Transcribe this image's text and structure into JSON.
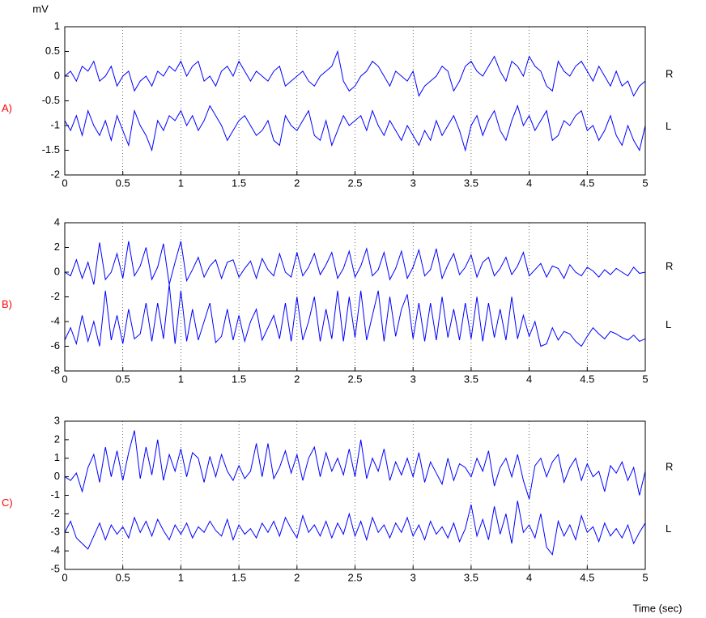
{
  "chart_data": [
    {
      "type": "line",
      "panel_label": "A)",
      "panel_color": "#ff0000",
      "ylabel": "mV",
      "x": [
        0,
        0.05,
        0.1,
        0.15,
        0.2,
        0.25,
        0.3,
        0.35,
        0.4,
        0.45,
        0.5,
        0.55,
        0.6,
        0.65,
        0.7,
        0.75,
        0.8,
        0.85,
        0.9,
        0.95,
        1,
        1.05,
        1.1,
        1.15,
        1.2,
        1.25,
        1.3,
        1.35,
        1.4,
        1.45,
        1.5,
        1.55,
        1.6,
        1.65,
        1.7,
        1.75,
        1.8,
        1.85,
        1.9,
        1.95,
        2,
        2.05,
        2.1,
        2.15,
        2.2,
        2.25,
        2.3,
        2.35,
        2.4,
        2.45,
        2.5,
        2.55,
        2.6,
        2.65,
        2.7,
        2.75,
        2.8,
        2.85,
        2.9,
        2.95,
        3,
        3.05,
        3.1,
        3.15,
        3.2,
        3.25,
        3.3,
        3.35,
        3.4,
        3.45,
        3.5,
        3.55,
        3.6,
        3.65,
        3.7,
        3.75,
        3.8,
        3.85,
        3.9,
        3.95,
        4,
        4.05,
        4.1,
        4.15,
        4.2,
        4.25,
        4.3,
        4.35,
        4.4,
        4.45,
        4.5,
        4.55,
        4.6,
        4.65,
        4.7,
        4.75,
        4.8,
        4.85,
        4.9,
        4.95,
        5
      ],
      "xlim": [
        0,
        5
      ],
      "xticks": [
        0,
        0.5,
        1,
        1.5,
        2,
        2.5,
        3,
        3.5,
        4,
        4.5,
        5
      ],
      "ylim": [
        -2,
        1
      ],
      "yticks": [
        -2,
        -1.5,
        -1,
        -0.5,
        0,
        0.5,
        1
      ],
      "grid": "x",
      "series": [
        {
          "name": "R",
          "color": "#0000ff",
          "values": [
            0.0,
            0.1,
            -0.1,
            0.2,
            0.1,
            0.3,
            -0.1,
            0.0,
            0.2,
            -0.2,
            0.0,
            0.1,
            -0.3,
            -0.1,
            0.0,
            -0.2,
            0.1,
            0.0,
            0.2,
            0.1,
            0.3,
            0.0,
            0.2,
            0.3,
            -0.1,
            0.0,
            -0.2,
            0.1,
            0.2,
            0.0,
            0.3,
            0.1,
            -0.1,
            0.1,
            0.0,
            -0.1,
            0.1,
            0.2,
            -0.2,
            -0.1,
            0.0,
            0.1,
            -0.1,
            -0.2,
            0.0,
            0.1,
            0.2,
            0.5,
            -0.1,
            -0.3,
            -0.2,
            0.0,
            0.1,
            0.3,
            0.2,
            0.0,
            -0.2,
            0.1,
            0.0,
            -0.1,
            0.1,
            -0.4,
            -0.2,
            -0.1,
            0.0,
            0.2,
            0.1,
            -0.3,
            -0.1,
            0.2,
            0.3,
            0.1,
            0.0,
            0.2,
            0.4,
            0.1,
            -0.1,
            0.3,
            0.2,
            0.0,
            0.4,
            0.2,
            0.1,
            -0.2,
            -0.3,
            0.3,
            0.1,
            0.0,
            0.2,
            0.3,
            0.1,
            -0.1,
            0.2,
            0.0,
            -0.2,
            0.1,
            -0.2,
            -0.1,
            -0.4,
            -0.2,
            -0.1
          ]
        },
        {
          "name": "L",
          "color": "#0000ff",
          "values": [
            -0.9,
            -1.1,
            -0.8,
            -1.2,
            -0.7,
            -1.0,
            -1.2,
            -0.9,
            -1.3,
            -0.8,
            -1.1,
            -1.4,
            -0.7,
            -1.0,
            -1.2,
            -1.5,
            -0.9,
            -1.1,
            -0.8,
            -0.9,
            -0.7,
            -1.0,
            -0.8,
            -1.1,
            -0.9,
            -0.6,
            -0.8,
            -1.0,
            -1.3,
            -1.1,
            -0.9,
            -0.8,
            -1.0,
            -1.2,
            -1.1,
            -0.9,
            -1.3,
            -1.4,
            -0.8,
            -1.0,
            -1.1,
            -0.9,
            -0.7,
            -1.2,
            -1.3,
            -0.9,
            -1.4,
            -1.1,
            -0.8,
            -1.0,
            -0.9,
            -0.8,
            -1.1,
            -0.7,
            -1.0,
            -1.2,
            -0.9,
            -1.1,
            -1.3,
            -1.0,
            -1.2,
            -1.4,
            -1.1,
            -1.3,
            -0.9,
            -1.2,
            -1.0,
            -0.8,
            -1.1,
            -1.5,
            -1.0,
            -0.8,
            -1.2,
            -0.9,
            -0.7,
            -1.1,
            -1.3,
            -0.9,
            -0.6,
            -1.0,
            -0.8,
            -1.1,
            -0.9,
            -0.7,
            -1.3,
            -1.2,
            -0.9,
            -1.0,
            -0.8,
            -0.7,
            -1.1,
            -1.0,
            -1.3,
            -1.1,
            -0.8,
            -1.2,
            -1.4,
            -1.0,
            -1.3,
            -1.5,
            -1.0
          ]
        }
      ]
    },
    {
      "type": "line",
      "panel_label": "B)",
      "panel_color": "#ff0000",
      "x": [
        0,
        0.05,
        0.1,
        0.15,
        0.2,
        0.25,
        0.3,
        0.35,
        0.4,
        0.45,
        0.5,
        0.55,
        0.6,
        0.65,
        0.7,
        0.75,
        0.8,
        0.85,
        0.9,
        0.95,
        1,
        1.05,
        1.1,
        1.15,
        1.2,
        1.25,
        1.3,
        1.35,
        1.4,
        1.45,
        1.5,
        1.55,
        1.6,
        1.65,
        1.7,
        1.75,
        1.8,
        1.85,
        1.9,
        1.95,
        2,
        2.05,
        2.1,
        2.15,
        2.2,
        2.25,
        2.3,
        2.35,
        2.4,
        2.45,
        2.5,
        2.55,
        2.6,
        2.65,
        2.7,
        2.75,
        2.8,
        2.85,
        2.9,
        2.95,
        3,
        3.05,
        3.1,
        3.15,
        3.2,
        3.25,
        3.3,
        3.35,
        3.4,
        3.45,
        3.5,
        3.55,
        3.6,
        3.65,
        3.7,
        3.75,
        3.8,
        3.85,
        3.9,
        3.95,
        4,
        4.05,
        4.1,
        4.15,
        4.2,
        4.25,
        4.3,
        4.35,
        4.4,
        4.45,
        4.5,
        4.55,
        4.6,
        4.65,
        4.7,
        4.75,
        4.8,
        4.85,
        4.9,
        4.95,
        5
      ],
      "xlim": [
        0,
        5
      ],
      "xticks": [
        0,
        0.5,
        1,
        1.5,
        2,
        2.5,
        3,
        3.5,
        4,
        4.5,
        5
      ],
      "ylim": [
        -8,
        4
      ],
      "yticks": [
        -8,
        -6,
        -4,
        -2,
        0,
        2,
        4
      ],
      "grid": "x",
      "series": [
        {
          "name": "R",
          "color": "#0000ff",
          "values": [
            0.0,
            -0.3,
            1.0,
            -0.5,
            0.8,
            -1.0,
            2.4,
            -0.6,
            0.0,
            1.5,
            -0.5,
            2.5,
            -0.3,
            0.5,
            2.0,
            -0.6,
            0.4,
            2.3,
            -1.0,
            0.8,
            2.5,
            -0.7,
            0.2,
            1.2,
            -0.4,
            0.5,
            1.0,
            -0.5,
            0.8,
            1.0,
            -0.4,
            0.3,
            0.9,
            -0.5,
            1.1,
            0.2,
            -0.3,
            1.5,
            0.0,
            -0.4,
            1.6,
            -0.3,
            0.4,
            1.5,
            -0.2,
            0.6,
            1.6,
            -0.5,
            0.3,
            1.7,
            -0.4,
            0.5,
            1.9,
            -0.3,
            0.2,
            1.6,
            -0.6,
            0.3,
            1.7,
            -0.5,
            0.4,
            1.8,
            -0.3,
            0.2,
            1.9,
            -0.5,
            0.6,
            1.5,
            -0.2,
            0.4,
            1.4,
            -0.4,
            0.8,
            1.2,
            -0.3,
            0.3,
            1.2,
            -0.2,
            0.5,
            1.6,
            -0.3,
            0.2,
            0.7,
            -0.4,
            0.5,
            0.3,
            -0.5,
            0.6,
            0.0,
            -0.3,
            0.4,
            0.1,
            -0.4,
            0.2,
            -0.2,
            0.3,
            0.0,
            -0.3,
            0.4,
            -0.1,
            0.0
          ]
        },
        {
          "name": "L",
          "color": "#0000ff",
          "values": [
            -5.5,
            -4.5,
            -5.8,
            -3.5,
            -5.6,
            -4.0,
            -6.0,
            -1.5,
            -5.5,
            -3.5,
            -5.8,
            -3.0,
            -5.4,
            -5.0,
            -2.5,
            -5.6,
            -2.5,
            -5.4,
            -1.0,
            -5.8,
            -1.5,
            -5.6,
            -3.0,
            -5.5,
            -4.0,
            -2.5,
            -5.7,
            -5.2,
            -3.0,
            -5.5,
            -3.5,
            -5.6,
            -4.0,
            -3.0,
            -5.5,
            -4.5,
            -3.5,
            -5.4,
            -2.5,
            -5.6,
            -2.0,
            -5.5,
            -4.0,
            -2.0,
            -5.6,
            -3.0,
            -5.4,
            -1.5,
            -5.6,
            -2.0,
            -5.3,
            -1.5,
            -5.5,
            -3.5,
            -1.5,
            -5.6,
            -2.0,
            -5.2,
            -3.0,
            -1.8,
            -5.4,
            -2.5,
            -5.6,
            -2.5,
            -5.5,
            -2.0,
            -5.3,
            -3.0,
            -5.5,
            -2.5,
            -5.4,
            -2.0,
            -5.6,
            -2.5,
            -5.3,
            -3.0,
            -5.5,
            -2.0,
            -5.4,
            -3.5,
            -5.2,
            -4.0,
            -6.0,
            -5.8,
            -4.5,
            -5.5,
            -4.8,
            -5.0,
            -5.6,
            -6.0,
            -5.2,
            -4.5,
            -5.0,
            -5.4,
            -4.8,
            -5.0,
            -5.3,
            -5.5,
            -5.1,
            -5.6,
            -5.4
          ]
        }
      ]
    },
    {
      "type": "line",
      "panel_label": "C)",
      "panel_color": "#ff0000",
      "xlabel": "Time (sec)",
      "x": [
        0,
        0.05,
        0.1,
        0.15,
        0.2,
        0.25,
        0.3,
        0.35,
        0.4,
        0.45,
        0.5,
        0.55,
        0.6,
        0.65,
        0.7,
        0.75,
        0.8,
        0.85,
        0.9,
        0.95,
        1,
        1.05,
        1.1,
        1.15,
        1.2,
        1.25,
        1.3,
        1.35,
        1.4,
        1.45,
        1.5,
        1.55,
        1.6,
        1.65,
        1.7,
        1.75,
        1.8,
        1.85,
        1.9,
        1.95,
        2,
        2.05,
        2.1,
        2.15,
        2.2,
        2.25,
        2.3,
        2.35,
        2.4,
        2.45,
        2.5,
        2.55,
        2.6,
        2.65,
        2.7,
        2.75,
        2.8,
        2.85,
        2.9,
        2.95,
        3,
        3.05,
        3.1,
        3.15,
        3.2,
        3.25,
        3.3,
        3.35,
        3.4,
        3.45,
        3.5,
        3.55,
        3.6,
        3.65,
        3.7,
        3.75,
        3.8,
        3.85,
        3.9,
        3.95,
        4,
        4.05,
        4.1,
        4.15,
        4.2,
        4.25,
        4.3,
        4.35,
        4.4,
        4.45,
        4.5,
        4.55,
        4.6,
        4.65,
        4.7,
        4.75,
        4.8,
        4.85,
        4.9,
        4.95,
        5
      ],
      "xlim": [
        0,
        5
      ],
      "xticks": [
        0,
        0.5,
        1,
        1.5,
        2,
        2.5,
        3,
        3.5,
        4,
        4.5,
        5
      ],
      "ylim": [
        -5,
        3
      ],
      "yticks": [
        -5,
        -4,
        -3,
        -2,
        -1,
        0,
        1,
        2,
        3
      ],
      "grid": "x",
      "series": [
        {
          "name": "R",
          "color": "#0000ff",
          "values": [
            0.0,
            -0.2,
            0.2,
            -0.8,
            0.5,
            1.2,
            -0.3,
            1.6,
            0.0,
            1.4,
            -0.2,
            1.3,
            2.5,
            -0.1,
            1.6,
            0.1,
            2.0,
            -0.2,
            1.2,
            0.3,
            1.5,
            0.0,
            1.3,
            1.0,
            -0.3,
            1.1,
            0.0,
            1.2,
            0.3,
            -0.2,
            0.6,
            -0.1,
            0.3,
            1.8,
            0.0,
            1.8,
            -0.1,
            0.5,
            1.4,
            0.2,
            1.2,
            -0.2,
            1.0,
            1.6,
            0.0,
            1.3,
            0.3,
            1.0,
            0.1,
            1.5,
            0.0,
            2.0,
            -0.1,
            1.0,
            0.3,
            1.5,
            -0.2,
            0.8,
            0.1,
            1.0,
            0.0,
            1.3,
            -0.3,
            0.8,
            0.2,
            -0.4,
            1.0,
            -0.2,
            0.7,
            0.5,
            0.0,
            1.0,
            0.3,
            1.4,
            -0.5,
            0.5,
            1.0,
            0.0,
            1.2,
            -0.2,
            -1.2,
            0.6,
            1.0,
            0.0,
            0.8,
            1.2,
            -0.3,
            0.5,
            1.0,
            -0.2,
            0.7,
            0.0,
            0.3,
            -0.8,
            0.6,
            0.2,
            0.8,
            -0.2,
            0.5,
            -1.0,
            0.3
          ]
        },
        {
          "name": "L",
          "color": "#0000ff",
          "values": [
            -3.0,
            -2.4,
            -3.3,
            -3.6,
            -3.9,
            -3.2,
            -2.5,
            -3.4,
            -2.6,
            -3.1,
            -2.7,
            -3.3,
            -2.2,
            -3.0,
            -2.4,
            -3.2,
            -2.3,
            -2.9,
            -3.4,
            -2.6,
            -3.1,
            -2.5,
            -3.3,
            -2.7,
            -3.0,
            -2.4,
            -2.9,
            -3.2,
            -2.3,
            -3.4,
            -2.6,
            -3.1,
            -2.8,
            -3.3,
            -2.5,
            -3.0,
            -2.4,
            -3.2,
            -2.2,
            -2.8,
            -3.3,
            -2.1,
            -3.0,
            -2.6,
            -3.2,
            -2.4,
            -3.3,
            -2.5,
            -3.1,
            -2.0,
            -3.2,
            -2.4,
            -3.4,
            -2.2,
            -3.0,
            -2.6,
            -3.3,
            -2.5,
            -3.0,
            -2.2,
            -3.2,
            -2.6,
            -3.4,
            -2.4,
            -3.1,
            -2.7,
            -3.3,
            -2.5,
            -3.5,
            -2.8,
            -1.5,
            -3.2,
            -2.3,
            -3.4,
            -1.6,
            -3.1,
            -2.0,
            -3.6,
            -1.3,
            -3.0,
            -2.6,
            -3.3,
            -2.0,
            -3.8,
            -4.2,
            -2.4,
            -3.2,
            -2.6,
            -3.4,
            -2.1,
            -3.0,
            -2.7,
            -3.5,
            -2.5,
            -3.2,
            -2.8,
            -3.3,
            -2.6,
            -3.6,
            -3.0,
            -2.5
          ]
        }
      ]
    }
  ]
}
